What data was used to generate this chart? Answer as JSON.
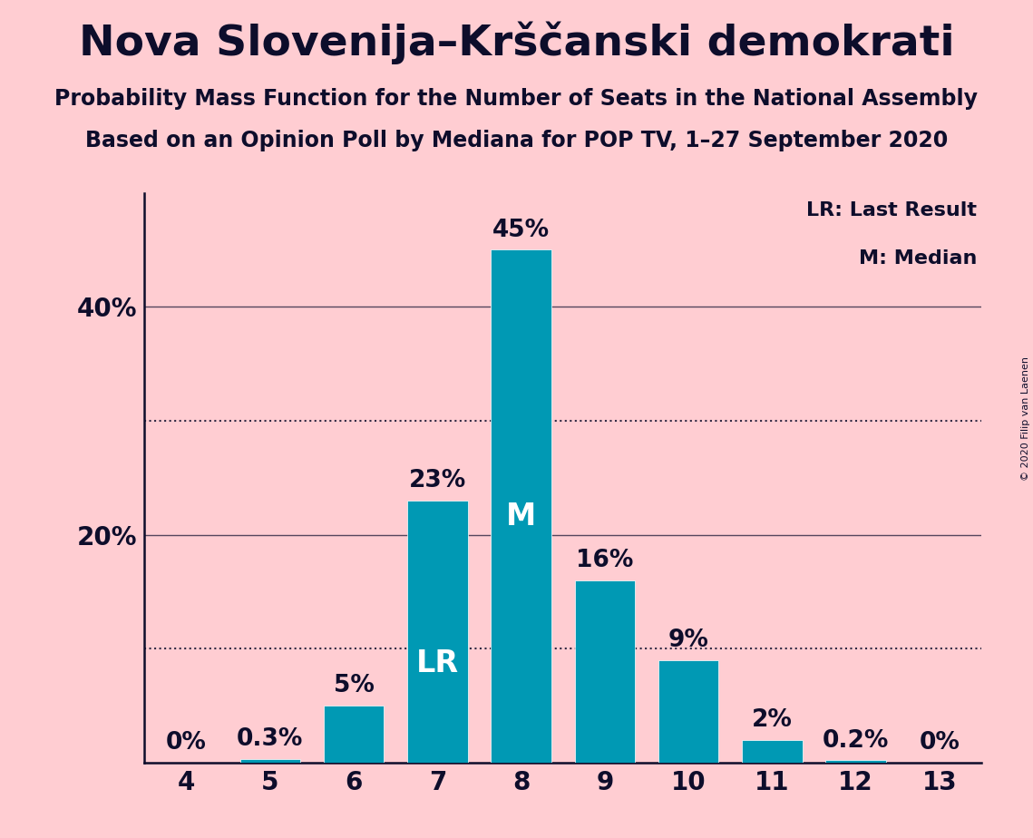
{
  "title": "Nova Slovenija–Krščanski demokrati",
  "subtitle1": "Probability Mass Function for the Number of Seats in the National Assembly",
  "subtitle2": "Based on an Opinion Poll by Mediana for POP TV, 1–27 September 2020",
  "copyright": "© 2020 Filip van Laenen",
  "categories": [
    4,
    5,
    6,
    7,
    8,
    9,
    10,
    11,
    12,
    13
  ],
  "values": [
    0.0,
    0.3,
    5.0,
    23.0,
    45.0,
    16.0,
    9.0,
    2.0,
    0.2,
    0.0
  ],
  "labels": [
    "0%",
    "0.3%",
    "5%",
    "23%",
    "45%",
    "16%",
    "9%",
    "2%",
    "0.2%",
    "0%"
  ],
  "bar_color": "#0099B4",
  "background_color": "#FFCDD2",
  "title_color": "#0D0D2B",
  "text_color": "#0D0D2B",
  "ylim": [
    0,
    50
  ],
  "yticks": [
    20,
    40
  ],
  "ytick_labels": [
    "20%",
    "40%"
  ],
  "dotted_lines": [
    10,
    30
  ],
  "lr_bar": 7,
  "median_bar": 8,
  "legend_lr": "LR: Last Result",
  "legend_m": "M: Median",
  "title_fontsize": 34,
  "subtitle_fontsize": 17,
  "tick_fontsize": 20,
  "bar_label_fontsize": 19,
  "inside_label_fontsize": 24,
  "bar_label_color_outside": "#0D0D2B",
  "bar_label_color_inside": "#FFFFFF",
  "legend_fontsize": 16,
  "copyright_fontsize": 8,
  "spine_color": "#0D0D2B",
  "dotted_color": "#0D0D2B",
  "solid_line_color": "#0D0D2B"
}
